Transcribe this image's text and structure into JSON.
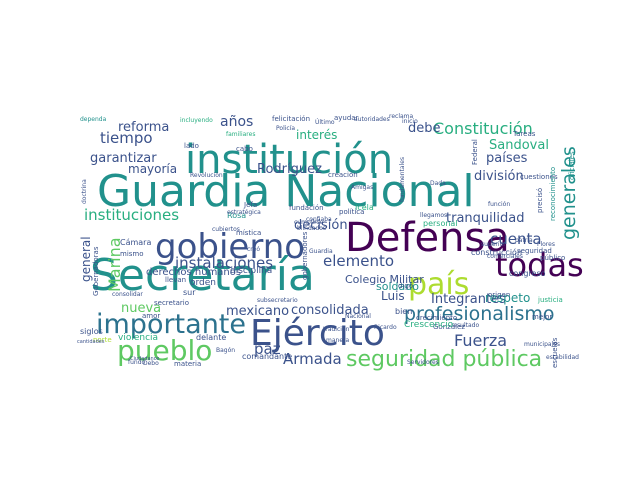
{
  "palette": {
    "purple": "#440154",
    "indigo": "#3b528b",
    "blue": "#2c728e",
    "teal": "#21918c",
    "green": "#28ae80",
    "lime": "#5ec962",
    "yellow": "#addc30",
    "gold": "#fde725"
  },
  "words": [
    {
      "t": "Guardia Nacional",
      "c": "teal"
    },
    {
      "t": "institución",
      "c": "teal"
    },
    {
      "t": "Secretaría",
      "c": "teal"
    },
    {
      "t": "Defensa",
      "c": "purple"
    },
    {
      "t": "gobierno",
      "c": "indigo"
    },
    {
      "t": "Ejército",
      "c": "indigo"
    },
    {
      "t": "importante",
      "c": "blue"
    },
    {
      "t": "pueblo",
      "c": "lime"
    },
    {
      "t": "país",
      "c": "yellow"
    },
    {
      "t": "todas",
      "c": "purple"
    },
    {
      "t": "seguridad pública",
      "c": "lime"
    },
    {
      "t": "profesionalismo",
      "c": "blue"
    },
    {
      "t": "Fuerza",
      "c": "indigo"
    },
    {
      "t": "Armada",
      "c": "indigo"
    },
    {
      "t": "Constitución",
      "c": "green"
    },
    {
      "t": "instalaciones",
      "c": "indigo"
    },
    {
      "t": "instituciones",
      "c": "green"
    },
    {
      "t": "elemento",
      "c": "indigo"
    },
    {
      "t": "generales",
      "c": "teal"
    },
    {
      "t": "Marina",
      "c": "lime"
    },
    {
      "t": "paz",
      "c": "indigo"
    },
    {
      "t": "cuenta",
      "c": "indigo"
    },
    {
      "t": "nueva",
      "c": "lime"
    },
    {
      "t": "tiempo",
      "c": "indigo"
    },
    {
      "t": "reforma",
      "c": "indigo"
    },
    {
      "t": "años",
      "c": "indigo"
    },
    {
      "t": "debe",
      "c": "indigo"
    },
    {
      "t": "países",
      "c": "indigo"
    },
    {
      "t": "Sandoval",
      "c": "green"
    },
    {
      "t": "Integrantes",
      "c": "indigo"
    },
    {
      "t": "consolidada",
      "c": "indigo"
    },
    {
      "t": "mexicano",
      "c": "indigo"
    },
    {
      "t": "decisión",
      "c": "indigo"
    },
    {
      "t": "división",
      "c": "indigo"
    },
    {
      "t": "tranquilidad",
      "c": "indigo"
    },
    {
      "t": "garantizar",
      "c": "indigo"
    },
    {
      "t": "mayoría",
      "c": "indigo"
    },
    {
      "t": "Rodríguez",
      "c": "indigo"
    },
    {
      "t": "interés",
      "c": "green"
    },
    {
      "t": "respeto",
      "c": "teal"
    },
    {
      "t": "soldado",
      "c": "teal"
    },
    {
      "t": "Luis",
      "c": "indigo"
    },
    {
      "t": "general",
      "c": "indigo"
    },
    {
      "t": "Colegio Militar",
      "c": "indigo"
    },
    {
      "t": "derechos humanos",
      "c": "indigo"
    },
    {
      "t": "disciplina",
      "c": "indigo"
    },
    {
      "t": "orden",
      "c": "indigo"
    },
    {
      "t": "congreso",
      "c": "indigo"
    },
    {
      "t": "construcción",
      "c": "indigo"
    },
    {
      "t": "público",
      "c": "indigo"
    },
    {
      "t": "seguridad",
      "c": "indigo"
    },
    {
      "t": "fundación",
      "c": "indigo"
    },
    {
      "t": "política",
      "c": "indigo"
    },
    {
      "t": "Jefa",
      "c": "indigo"
    },
    {
      "t": "Rosa",
      "c": "teal"
    },
    {
      "t": "Cámara",
      "c": "indigo"
    },
    {
      "t": "mismo",
      "c": "indigo"
    },
    {
      "t": "llevan",
      "c": "indigo"
    },
    {
      "t": "siglos",
      "c": "indigo"
    },
    {
      "t": "violencia",
      "c": "green"
    },
    {
      "t": "delante",
      "c": "indigo"
    },
    {
      "t": "comandante",
      "c": "indigo"
    },
    {
      "t": "secretario",
      "c": "indigo"
    },
    {
      "t": "sur",
      "c": "indigo"
    },
    {
      "t": "mística",
      "c": "indigo"
    },
    {
      "t": "González",
      "c": "indigo"
    },
    {
      "t": "personal",
      "c": "green"
    },
    {
      "t": "bien",
      "c": "indigo"
    },
    {
      "t": "digo",
      "c": "indigo"
    },
    {
      "t": "mejor",
      "c": "indigo"
    },
    {
      "t": "justicia",
      "c": "green"
    },
    {
      "t": "origen",
      "c": "indigo"
    },
    {
      "t": "Flores",
      "c": "indigo"
    },
    {
      "t": "patria",
      "c": "indigo"
    },
    {
      "t": "Gobernadoras",
      "c": "indigo"
    },
    {
      "t": "materia",
      "c": "indigo"
    },
    {
      "t": "fundó",
      "c": "indigo"
    },
    {
      "t": "escuelas",
      "c": "indigo"
    },
    {
      "t": "felicitación",
      "c": "indigo"
    },
    {
      "t": "ayudar",
      "c": "indigo"
    },
    {
      "t": "familiares",
      "c": "green"
    },
    {
      "t": "Policía",
      "c": "indigo"
    },
    {
      "t": "incluyendo",
      "c": "green"
    },
    {
      "t": "dependa",
      "c": "teal"
    },
    {
      "t": "doctrina",
      "c": "indigo"
    },
    {
      "t": "Revolución",
      "c": "indigo"
    },
    {
      "t": "Federal",
      "c": "indigo"
    },
    {
      "t": "cuestiones",
      "c": "indigo"
    },
    {
      "t": "reconocimiento",
      "c": "teal"
    },
    {
      "t": "oficiales",
      "c": "teal"
    },
    {
      "t": "lado",
      "c": "indigo"
    },
    {
      "t": "tradición",
      "c": "indigo"
    },
    {
      "t": "Nacional",
      "c": "indigo"
    },
    {
      "t": "Servidores",
      "c": "indigo"
    },
    {
      "t": "Ciudadanos",
      "c": "indigo"
    },
    {
      "t": "amor",
      "c": "indigo"
    },
    {
      "t": "cabo",
      "c": "indigo"
    },
    {
      "t": "creó",
      "c": "indigo"
    },
    {
      "t": "Guardia",
      "c": "indigo"
    },
    {
      "t": "reclama",
      "c": "indigo"
    },
    {
      "t": "Ricardo",
      "c": "indigo"
    },
    {
      "t": "Último",
      "c": "indigo"
    },
    {
      "t": "autoridades",
      "c": "indigo"
    },
    {
      "t": "inicio",
      "c": "indigo"
    },
    {
      "t": "Amigas",
      "c": "indigo"
    },
    {
      "t": "blindados",
      "c": "indigo"
    },
    {
      "t": "cumplirse",
      "c": "indigo"
    },
    {
      "t": "llegamos",
      "c": "indigo"
    },
    {
      "t": "Icela",
      "c": "green"
    },
    {
      "t": "resultado",
      "c": "indigo"
    },
    {
      "t": "comerciales",
      "c": "indigo"
    },
    {
      "t": "creación",
      "c": "indigo"
    },
    {
      "t": "crecimiento",
      "c": "indigo"
    },
    {
      "t": "confiaba",
      "c": "indigo"
    },
    {
      "t": "cubiertos",
      "c": "indigo"
    },
    {
      "t": "superior",
      "c": "indigo"
    },
    {
      "t": "consolidar",
      "c": "indigo"
    },
    {
      "t": "norte",
      "c": "yellow"
    },
    {
      "t": "cantidades",
      "c": "indigo"
    },
    {
      "t": "Crescencio",
      "c": "green"
    },
    {
      "t": "función",
      "c": "indigo"
    },
    {
      "t": "municipales",
      "c": "indigo"
    },
    {
      "t": "estratégica",
      "c": "indigo"
    },
    {
      "t": "subsecretario",
      "c": "indigo"
    },
    {
      "t": "gobernadores",
      "c": "indigo"
    },
    {
      "t": "fundamentales",
      "c": "indigo"
    },
    {
      "t": "manera",
      "c": "indigo"
    },
    {
      "t": "Tareas",
      "c": "indigo"
    },
    {
      "t": "precisó",
      "c": "indigo"
    },
    {
      "t": "Dada",
      "c": "indigo"
    },
    {
      "t": "Debo",
      "c": "indigo"
    },
    {
      "t": "estabilidad",
      "c": "indigo"
    },
    {
      "t": "Bagón",
      "c": "indigo"
    }
  ]
}
